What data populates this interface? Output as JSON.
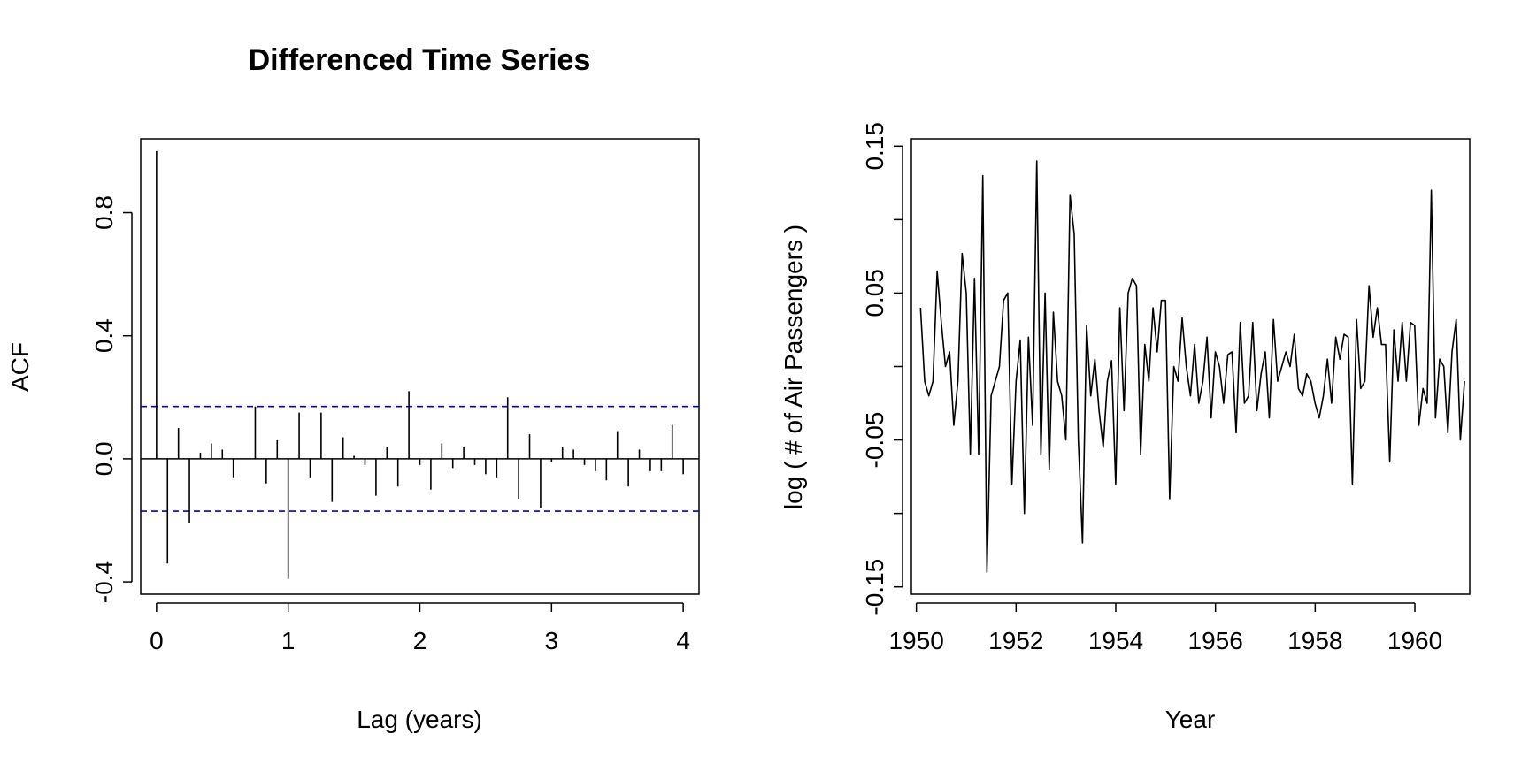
{
  "chart_data": [
    {
      "type": "bar",
      "subtype": "acf",
      "title": "Differenced Time Series",
      "xlabel": "Lag (years)",
      "ylabel": "ACF",
      "xlim": [
        -0.12,
        4.12
      ],
      "ylim": [
        -0.44,
        1.04
      ],
      "xticks": [
        0,
        1,
        2,
        3,
        4
      ],
      "xtick_labels": [
        "0",
        "1",
        "2",
        "3",
        "4"
      ],
      "yticks": [
        -0.4,
        0,
        0.4,
        0.8
      ],
      "ytick_labels": [
        "-0.4",
        "0.0",
        "0.4",
        "0.8"
      ],
      "confidence_bound": 0.17,
      "confidence_color": "#0000cc",
      "lags": [
        0.0,
        0.0833,
        0.1667,
        0.25,
        0.3333,
        0.4167,
        0.5,
        0.5833,
        0.6667,
        0.75,
        0.8333,
        0.9167,
        1.0,
        1.0833,
        1.1667,
        1.25,
        1.3333,
        1.4167,
        1.5,
        1.5833,
        1.6667,
        1.75,
        1.8333,
        1.9167,
        2.0,
        2.0833,
        2.1667,
        2.25,
        2.3333,
        2.4167,
        2.5,
        2.5833,
        2.6667,
        2.75,
        2.8333,
        2.9167,
        3.0,
        3.0833,
        3.1667,
        3.25,
        3.3333,
        3.4167,
        3.5,
        3.5833,
        3.6667,
        3.75,
        3.8333,
        3.9167,
        4.0
      ],
      "values": [
        1.0,
        -0.34,
        0.1,
        -0.21,
        0.02,
        0.05,
        0.03,
        -0.06,
        0.0,
        0.17,
        -0.08,
        0.06,
        -0.39,
        0.15,
        -0.06,
        0.15,
        -0.14,
        0.07,
        0.01,
        -0.02,
        -0.12,
        0.04,
        -0.09,
        0.22,
        -0.02,
        -0.1,
        0.05,
        -0.03,
        0.04,
        -0.02,
        -0.05,
        -0.06,
        0.2,
        -0.13,
        0.08,
        -0.16,
        -0.01,
        0.04,
        0.03,
        -0.02,
        -0.04,
        -0.07,
        0.09,
        -0.09,
        0.03,
        -0.04,
        -0.04,
        0.11,
        -0.05
      ]
    },
    {
      "type": "line",
      "title": "",
      "xlabel": "Year",
      "ylabel": "log ( # of Air Passengers )",
      "xlim": [
        1949.9,
        1961.1
      ],
      "ylim": [
        -0.155,
        0.155
      ],
      "xticks": [
        1950,
        1952,
        1954,
        1956,
        1958,
        1960
      ],
      "xtick_labels": [
        "1950",
        "1952",
        "1954",
        "1956",
        "1958",
        "1960"
      ],
      "yticks": [
        -0.15,
        -0.1,
        -0.05,
        0,
        0.05,
        0.1,
        0.15
      ],
      "ytick_labels": [
        "-0.15",
        "",
        "-0.05",
        "",
        "0.05",
        "",
        "0.15"
      ],
      "x_start": 1950.0833,
      "x_step": 0.0833,
      "values": [
        0.04,
        -0.01,
        -0.02,
        -0.01,
        0.065,
        0.03,
        0.0,
        0.01,
        -0.04,
        -0.01,
        0.077,
        0.05,
        -0.06,
        0.06,
        -0.06,
        0.13,
        -0.14,
        -0.02,
        -0.01,
        0.0,
        0.045,
        0.05,
        -0.08,
        -0.01,
        0.018,
        -0.1,
        0.02,
        -0.04,
        0.14,
        -0.06,
        0.05,
        -0.07,
        0.037,
        -0.01,
        -0.02,
        -0.05,
        0.117,
        0.09,
        -0.05,
        -0.12,
        0.028,
        -0.02,
        0.005,
        -0.03,
        -0.055,
        -0.01,
        0.004,
        -0.08,
        0.04,
        -0.03,
        0.05,
        0.06,
        0.055,
        -0.06,
        0.015,
        -0.01,
        0.04,
        0.01,
        0.045,
        0.045,
        -0.09,
        0.0,
        -0.01,
        0.033,
        0.0,
        -0.02,
        0.015,
        -0.025,
        -0.01,
        0.02,
        -0.035,
        0.01,
        0.0,
        -0.025,
        0.008,
        0.01,
        -0.045,
        0.03,
        -0.025,
        -0.02,
        0.03,
        -0.03,
        -0.005,
        0.01,
        -0.035,
        0.032,
        -0.01,
        0.0,
        0.01,
        0.0,
        0.022,
        -0.015,
        -0.02,
        -0.005,
        -0.01,
        -0.025,
        -0.035,
        -0.02,
        0.005,
        -0.025,
        0.02,
        0.005,
        0.022,
        0.02,
        -0.08,
        0.032,
        -0.015,
        -0.01,
        0.055,
        0.02,
        0.04,
        0.015,
        0.015,
        -0.065,
        0.025,
        -0.01,
        0.03,
        -0.01,
        0.03,
        0.028,
        -0.04,
        -0.015,
        -0.025,
        0.12,
        -0.035,
        0.005,
        0.0,
        -0.045,
        0.01,
        0.032,
        -0.05,
        -0.01
      ]
    }
  ]
}
